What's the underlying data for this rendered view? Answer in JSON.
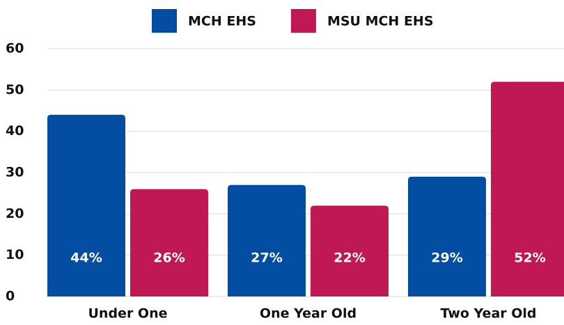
{
  "chart_data": {
    "type": "bar",
    "categories": [
      "Under One",
      "One Year Old",
      "Two Year Old"
    ],
    "series": [
      {
        "name": "MCH EHS",
        "color": "#034ea2",
        "values": [
          44,
          27,
          29
        ],
        "value_labels": [
          "44%",
          "27%",
          "29%"
        ]
      },
      {
        "name": "MSU MCH EHS",
        "color": "#c01855",
        "values": [
          26,
          22,
          52
        ],
        "value_labels": [
          "26%",
          "22%",
          "52%"
        ]
      }
    ],
    "ylim": [
      0,
      60
    ],
    "yticks": [
      0,
      10,
      20,
      30,
      40,
      50,
      60
    ],
    "grid": true,
    "legend": "top"
  }
}
